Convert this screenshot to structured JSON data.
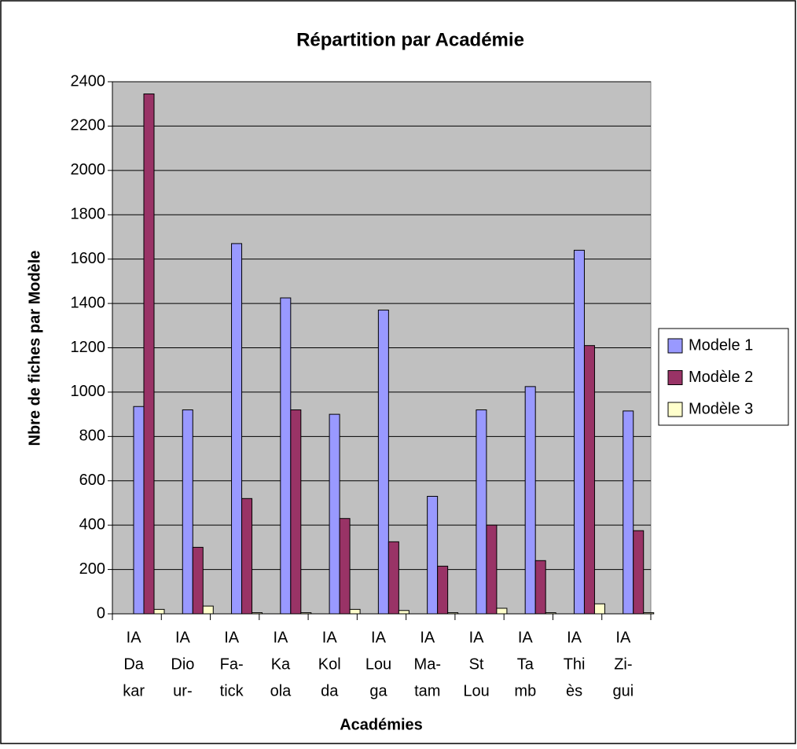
{
  "chart_data": {
    "type": "bar",
    "title": "Répartition par Académie",
    "x_label": "Académies",
    "y_label": "Nbre de fiches par Modèle",
    "categories": [
      [
        "IA",
        "Da",
        "kar"
      ],
      [
        "IA",
        "Dio",
        "ur-"
      ],
      [
        "IA",
        "Fa-",
        "tick"
      ],
      [
        "IA",
        "Ka",
        "ola"
      ],
      [
        "IA",
        "Kol",
        "da"
      ],
      [
        "IA",
        "Lou",
        "ga"
      ],
      [
        "IA",
        "Ma-",
        "tam"
      ],
      [
        "IA",
        "St",
        "Lou"
      ],
      [
        "IA",
        "Ta",
        "mb"
      ],
      [
        "IA",
        "Thi",
        "ès"
      ],
      [
        "IA",
        "Zi-",
        "gui"
      ]
    ],
    "series": [
      {
        "name": "Modele 1",
        "color": "#9999ff",
        "values": [
          935,
          920,
          1670,
          1425,
          900,
          1370,
          530,
          920,
          1025,
          1640,
          915
        ]
      },
      {
        "name": "Modèle 2",
        "color": "#993366",
        "values": [
          2345,
          300,
          520,
          920,
          430,
          325,
          215,
          400,
          240,
          1210,
          375
        ]
      },
      {
        "name": "Modèle 3",
        "color": "#ffffcc",
        "values": [
          20,
          35,
          5,
          5,
          20,
          15,
          5,
          25,
          5,
          45,
          5
        ]
      }
    ],
    "ylim": [
      0,
      2400
    ],
    "yticks": [
      0,
      200,
      400,
      600,
      800,
      1000,
      1200,
      1400,
      1600,
      1800,
      2000,
      2200,
      2400
    ],
    "grid": true,
    "legend": "right",
    "plot_background": "#c0c0c0"
  }
}
